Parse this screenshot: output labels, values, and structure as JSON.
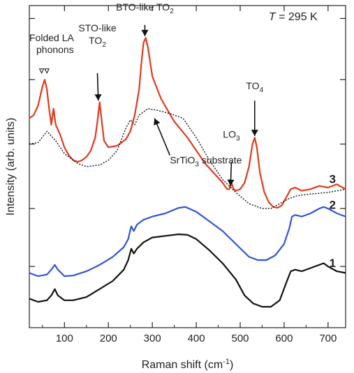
{
  "chart_data": {
    "type": "line",
    "xlabel": "Raman shift (cm",
    "xlabel_sup": "-1",
    "xlabel_end": ")",
    "ylabel": "Intensity (arb. units)",
    "xlim": [
      20,
      740
    ],
    "ylim": [
      0,
      10
    ],
    "x_ticks": [
      100,
      200,
      300,
      400,
      500,
      600,
      700
    ],
    "y_tick_values": [
      1.9,
      3.7,
      5.7,
      7.7,
      9.6
    ],
    "grid": false,
    "temperature_label": {
      "italic": "T",
      "rest": " = 295 K"
    },
    "colors": {
      "spectrum_1": "#111111",
      "spectrum_2": "#2f55d4",
      "spectrum_3": "#e03a1e",
      "substrate": "#111111",
      "axis": "#222222"
    },
    "series": [
      {
        "name": "3",
        "color": "#e03a1e",
        "style": "solid",
        "points": [
          [
            20,
            6.5
          ],
          [
            30,
            6.6
          ],
          [
            40,
            6.9
          ],
          [
            50,
            7.5
          ],
          [
            55,
            7.7
          ],
          [
            60,
            7.4
          ],
          [
            65,
            6.8
          ],
          [
            70,
            6.3
          ],
          [
            75,
            6.8
          ],
          [
            80,
            6.3
          ],
          [
            90,
            6.0
          ],
          [
            100,
            5.6
          ],
          [
            110,
            5.35
          ],
          [
            120,
            5.2
          ],
          [
            130,
            5.15
          ],
          [
            140,
            5.2
          ],
          [
            150,
            5.3
          ],
          [
            160,
            5.5
          ],
          [
            170,
            5.9
          ],
          [
            175,
            6.4
          ],
          [
            180,
            7.0
          ],
          [
            185,
            6.4
          ],
          [
            190,
            5.8
          ],
          [
            200,
            5.6
          ],
          [
            220,
            5.65
          ],
          [
            240,
            5.85
          ],
          [
            250,
            6.1
          ],
          [
            260,
            6.6
          ],
          [
            270,
            7.4
          ],
          [
            275,
            8.2
          ],
          [
            280,
            8.85
          ],
          [
            285,
            9.0
          ],
          [
            290,
            8.7
          ],
          [
            300,
            7.8
          ],
          [
            320,
            7.1
          ],
          [
            350,
            6.4
          ],
          [
            380,
            5.9
          ],
          [
            400,
            5.5
          ],
          [
            420,
            5.1
          ],
          [
            440,
            4.8
          ],
          [
            460,
            4.5
          ],
          [
            470,
            4.3
          ],
          [
            475,
            4.3
          ],
          [
            480,
            4.5
          ],
          [
            485,
            4.3
          ],
          [
            490,
            4.25
          ],
          [
            500,
            4.3
          ],
          [
            510,
            4.5
          ],
          [
            520,
            5.0
          ],
          [
            528,
            5.7
          ],
          [
            533,
            5.9
          ],
          [
            538,
            5.6
          ],
          [
            545,
            4.8
          ],
          [
            555,
            4.2
          ],
          [
            565,
            3.9
          ],
          [
            575,
            3.75
          ],
          [
            585,
            3.72
          ],
          [
            595,
            3.8
          ],
          [
            605,
            4.05
          ],
          [
            615,
            4.3
          ],
          [
            625,
            4.35
          ],
          [
            640,
            4.25
          ],
          [
            660,
            4.3
          ],
          [
            680,
            4.4
          ],
          [
            700,
            4.35
          ],
          [
            720,
            4.45
          ],
          [
            740,
            4.3
          ]
        ]
      },
      {
        "name": "2",
        "color": "#2f55d4",
        "style": "solid",
        "points": [
          [
            20,
            1.7
          ],
          [
            40,
            1.6
          ],
          [
            60,
            1.65
          ],
          [
            70,
            1.8
          ],
          [
            78,
            1.95
          ],
          [
            85,
            1.8
          ],
          [
            100,
            1.6
          ],
          [
            120,
            1.62
          ],
          [
            150,
            1.75
          ],
          [
            180,
            1.95
          ],
          [
            210,
            2.2
          ],
          [
            235,
            2.5
          ],
          [
            245,
            2.75
          ],
          [
            252,
            3.15
          ],
          [
            258,
            3.0
          ],
          [
            265,
            3.2
          ],
          [
            280,
            3.35
          ],
          [
            300,
            3.45
          ],
          [
            330,
            3.55
          ],
          [
            360,
            3.72
          ],
          [
            375,
            3.75
          ],
          [
            400,
            3.6
          ],
          [
            430,
            3.3
          ],
          [
            460,
            3.0
          ],
          [
            490,
            2.6
          ],
          [
            520,
            2.2
          ],
          [
            540,
            2.1
          ],
          [
            560,
            2.1
          ],
          [
            580,
            2.25
          ],
          [
            600,
            2.6
          ],
          [
            612,
            3.1
          ],
          [
            618,
            3.45
          ],
          [
            625,
            3.5
          ],
          [
            640,
            3.45
          ],
          [
            660,
            3.55
          ],
          [
            680,
            3.7
          ],
          [
            690,
            3.75
          ],
          [
            700,
            3.7
          ],
          [
            720,
            3.55
          ],
          [
            740,
            3.45
          ]
        ]
      },
      {
        "name": "1",
        "color": "#111111",
        "style": "solid",
        "points": [
          [
            20,
            0.9
          ],
          [
            40,
            0.8
          ],
          [
            60,
            0.85
          ],
          [
            70,
            1.0
          ],
          [
            78,
            1.2
          ],
          [
            85,
            1.0
          ],
          [
            100,
            0.85
          ],
          [
            120,
            0.85
          ],
          [
            150,
            0.95
          ],
          [
            180,
            1.2
          ],
          [
            210,
            1.45
          ],
          [
            235,
            1.8
          ],
          [
            245,
            2.1
          ],
          [
            252,
            2.45
          ],
          [
            258,
            2.3
          ],
          [
            265,
            2.45
          ],
          [
            280,
            2.65
          ],
          [
            300,
            2.8
          ],
          [
            330,
            2.85
          ],
          [
            360,
            2.9
          ],
          [
            380,
            2.88
          ],
          [
            400,
            2.75
          ],
          [
            430,
            2.4
          ],
          [
            460,
            2.0
          ],
          [
            490,
            1.5
          ],
          [
            510,
            1.0
          ],
          [
            530,
            0.75
          ],
          [
            550,
            0.65
          ],
          [
            570,
            0.65
          ],
          [
            590,
            0.85
          ],
          [
            605,
            1.4
          ],
          [
            615,
            1.75
          ],
          [
            625,
            1.8
          ],
          [
            640,
            1.75
          ],
          [
            660,
            1.85
          ],
          [
            680,
            1.95
          ],
          [
            690,
            2.0
          ],
          [
            700,
            1.9
          ],
          [
            720,
            1.75
          ],
          [
            740,
            1.7
          ]
        ]
      },
      {
        "name": "",
        "color": "#111111",
        "style": "dotted",
        "points": [
          [
            20,
            5.7
          ],
          [
            40,
            5.75
          ],
          [
            60,
            6.1
          ],
          [
            80,
            5.8
          ],
          [
            100,
            5.4
          ],
          [
            130,
            5.1
          ],
          [
            150,
            5.0
          ],
          [
            180,
            5.05
          ],
          [
            200,
            5.2
          ],
          [
            220,
            5.5
          ],
          [
            240,
            6.2
          ],
          [
            250,
            6.45
          ],
          [
            260,
            6.3
          ],
          [
            270,
            6.6
          ],
          [
            290,
            6.8
          ],
          [
            310,
            6.75
          ],
          [
            340,
            6.65
          ],
          [
            370,
            6.5
          ],
          [
            400,
            5.9
          ],
          [
            430,
            5.2
          ],
          [
            460,
            4.6
          ],
          [
            490,
            4.2
          ],
          [
            520,
            3.85
          ],
          [
            550,
            3.7
          ],
          [
            570,
            3.7
          ],
          [
            590,
            3.85
          ],
          [
            610,
            4.0
          ],
          [
            630,
            4.1
          ],
          [
            660,
            4.15
          ],
          [
            700,
            4.2
          ],
          [
            740,
            4.3
          ]
        ]
      }
    ],
    "series_labels": [
      {
        "text": "3",
        "x": 740,
        "y": 4.4
      },
      {
        "text": "2",
        "x": 740,
        "y": 3.6
      },
      {
        "text": "1",
        "x": 740,
        "y": 1.8
      }
    ],
    "annotations": [
      {
        "lines": [
          "Folded LA",
          "phonons"
        ],
        "text_x": 20,
        "text_y": 8.9,
        "marker": "triangles",
        "marker_x": [
          48,
          60
        ],
        "marker_y": 7.95
      },
      {
        "lines": [
          "STO-like",
          "TO",
          "2"
        ],
        "text_x": 175,
        "text_y": 8.85,
        "arrow_from": [
          175,
          7.9
        ],
        "arrow_to": [
          177,
          7.05
        ]
      },
      {
        "lines": [
          "BTO-like TO",
          "2"
        ],
        "text_x": 283,
        "text_y": 9.85,
        "arrow_from": [
          283,
          9.4
        ],
        "arrow_to": [
          283,
          9.05
        ]
      },
      {
        "lines": [
          "LO",
          "3"
        ],
        "text_x": 480,
        "text_y": 5.9,
        "arrow_from": [
          480,
          5.15
        ],
        "arrow_to": [
          478,
          4.4
        ]
      },
      {
        "lines": [
          "TO",
          "4"
        ],
        "text_x": 533,
        "text_y": 7.4,
        "arrow_from": [
          533,
          7.05
        ],
        "arrow_to": [
          533,
          5.95
        ]
      },
      {
        "lines": [
          "SrTiO",
          "3",
          " substrate"
        ],
        "text_x": 340,
        "text_y": 5.1,
        "arrow_from": [
          340,
          5.35
        ],
        "arrow_to": [
          305,
          6.5
        ]
      }
    ]
  }
}
